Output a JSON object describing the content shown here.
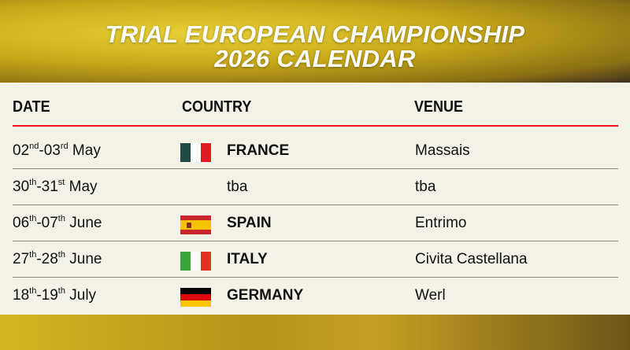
{
  "header": {
    "title_line1": "TRIAL EUROPEAN CHAMPIONSHIP",
    "title_line2": "2026 CALENDAR"
  },
  "columns": {
    "date": "DATE",
    "country": "COUNTRY",
    "venue": "VENUE"
  },
  "colors": {
    "accent_line": "#e3141c",
    "panel": "#f4f1e7",
    "banner": "#c6a818"
  },
  "rows": [
    {
      "d1": "02",
      "s1": "nd",
      "d2": "03",
      "s2": "rd",
      "month": "May",
      "country": "FRANCE",
      "venue": "Massais",
      "flag": "france-flag",
      "flag_colors": [
        "#1f4a44",
        "#ffffff",
        "#e01b22"
      ],
      "flag_dir": "vertical"
    },
    {
      "d1": "30",
      "s1": "th",
      "d2": "31",
      "s2": "st",
      "month": "May",
      "country": "tba",
      "venue": "tba",
      "flag": null
    },
    {
      "d1": "06",
      "s1": "th",
      "d2": "07",
      "s2": "th",
      "month": "June",
      "country": "SPAIN",
      "venue": "Entrimo",
      "flag": "spain-flag",
      "flag_colors": [
        "#c8262c",
        "#f5c400",
        "#c8262c"
      ],
      "flag_dir": "horizontal-spain"
    },
    {
      "d1": "27",
      "s1": "th",
      "d2": "28",
      "s2": "th",
      "month": "June",
      "country": "ITALY",
      "venue": "Civita Castellana",
      "flag": "italy-flag",
      "flag_colors": [
        "#3aa43c",
        "#ffffff",
        "#e2331c"
      ],
      "flag_dir": "vertical"
    },
    {
      "d1": "18",
      "s1": "th",
      "d2": "19",
      "s2": "th",
      "month": "July",
      "country": "GERMANY",
      "venue": "Werl",
      "flag": "germany-flag",
      "flag_colors": [
        "#000000",
        "#dd0000",
        "#f7c600"
      ],
      "flag_dir": "horizontal"
    }
  ]
}
